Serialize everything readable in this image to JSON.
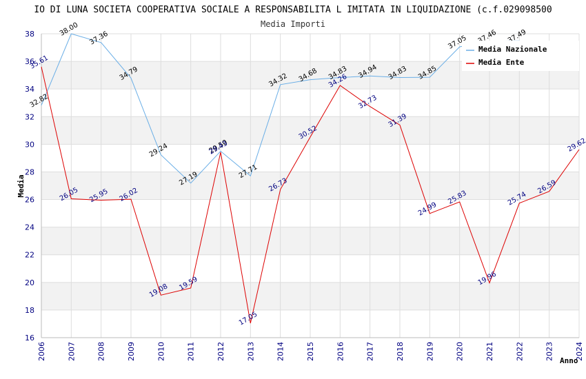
{
  "chart_data": {
    "type": "line",
    "title": "IO DI LUNA SOCIETA COOPERATIVA SOCIALE A RESPONSABILITA L IMITATA IN LIQUIDAZIONE (c.f.029098500",
    "subtitle": "Media Importi",
    "xlabel": "Anno",
    "ylabel": "Media",
    "ylim": [
      16,
      38
    ],
    "yticks": [
      16,
      18,
      20,
      22,
      24,
      26,
      28,
      30,
      32,
      34,
      36,
      38
    ],
    "categories": [
      "2006",
      "2007",
      "2008",
      "2009",
      "2010",
      "2011",
      "2012",
      "2013",
      "2014",
      "2015",
      "2016",
      "2017",
      "2018",
      "2019",
      "2020",
      "2021",
      "2022",
      "2023",
      "2024"
    ],
    "series": [
      {
        "name": "Media Nazionale",
        "color": "#6aaee6",
        "values": [
          32.82,
          38.0,
          37.36,
          34.79,
          29.24,
          27.19,
          29.5,
          27.71,
          34.32,
          34.68,
          34.83,
          34.94,
          34.83,
          34.85,
          37.05,
          37.46,
          37.49,
          null,
          null
        ],
        "labels": [
          "32.82",
          "38.00",
          "37.36",
          "34.79",
          "29.24",
          "27.19",
          "29.50",
          "27.71",
          "34.32",
          "34.68",
          "34.83",
          "34.94",
          "34.83",
          "34.85",
          "37.05",
          "37.46",
          "37.49",
          "",
          ""
        ]
      },
      {
        "name": "Media Ente",
        "color": "#dd0000",
        "values": [
          35.61,
          26.05,
          25.95,
          26.02,
          19.08,
          19.59,
          29.43,
          17.05,
          26.73,
          30.52,
          34.26,
          32.73,
          31.39,
          24.99,
          25.83,
          19.96,
          25.74,
          26.59,
          29.62
        ],
        "labels": [
          "35.61",
          "26.05",
          "25.95",
          "26.02",
          "19.08",
          "19.59",
          "29.43",
          "17.05",
          "26.73",
          "30.52",
          "34.26",
          "32.73",
          "31.39",
          "24.99",
          "25.83",
          "19.96",
          "25.74",
          "26.59",
          "29.62"
        ]
      }
    ],
    "legend_position": "top-right",
    "grid": true
  }
}
